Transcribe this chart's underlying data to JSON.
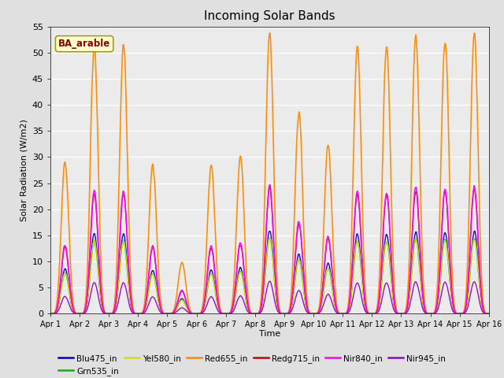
{
  "title": "Incoming Solar Bands",
  "xlabel": "Time",
  "ylabel": "Solar Radiation (W/m2)",
  "annotation": "BA_arable",
  "ylim": [
    0,
    55
  ],
  "series_names": [
    "Blu475_in",
    "Grn535_in",
    "Yel580_in",
    "Red655_in",
    "Redg715_in",
    "Nir840_in",
    "Nir945_in"
  ],
  "series_colors": [
    "#0000cc",
    "#00bb00",
    "#dddd00",
    "#ff8800",
    "#cc0000",
    "#ff00ff",
    "#9900cc"
  ],
  "series_lw": [
    1.0,
    1.0,
    1.0,
    1.2,
    1.0,
    1.2,
    1.0
  ],
  "legend_colors": [
    "#0000cc",
    "#00bb00",
    "#dddd00",
    "#ff8800",
    "#cc0000",
    "#ff00ff",
    "#9900cc"
  ],
  "bg_color": "#e0e0e0",
  "plot_bg": "#ebebeb",
  "annotation_fg": "#8b0000",
  "annotation_bg": "#ffffcc",
  "annotation_border": "#999900"
}
